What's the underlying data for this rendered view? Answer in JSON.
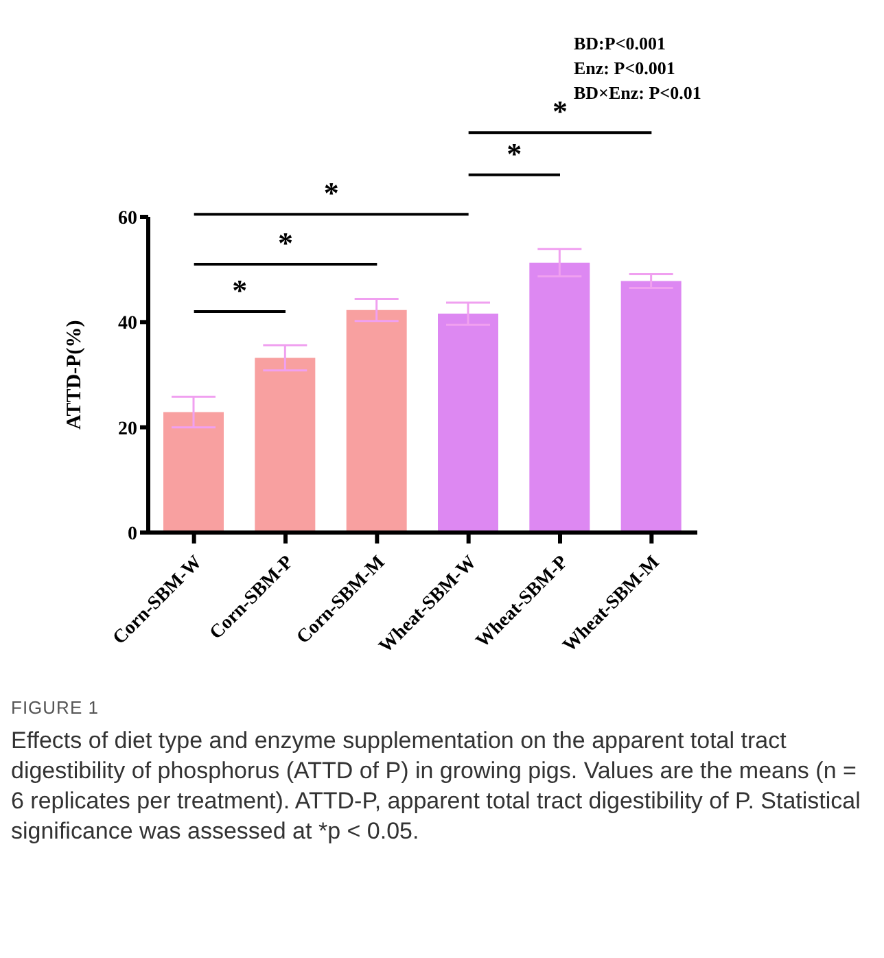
{
  "chart_data": {
    "type": "bar",
    "ylabel": "ATTD-P(%)",
    "categories": [
      "Corn-SBM-W",
      "Corn-SBM-P",
      "Corn-SBM-M",
      "Wheat-SBM-W",
      "Wheat-SBM-P",
      "Wheat-SBM-M"
    ],
    "values": [
      22.9,
      33.2,
      42.3,
      41.6,
      51.3,
      47.8
    ],
    "errors": [
      2.9,
      2.4,
      2.1,
      2.1,
      2.6,
      1.3
    ],
    "colors": [
      "#f8a0a0",
      "#f8a0a0",
      "#f8a0a0",
      "#dd88f2",
      "#dd88f2",
      "#dd88f2"
    ],
    "ylim": [
      0,
      60
    ],
    "yticks": [
      0,
      20,
      40,
      60
    ],
    "annotations": [
      "*",
      "*",
      "*",
      "*",
      "*",
      "BD:P<0.001",
      "Enz: P<0.001",
      "BD×Enz: P<0.01",
      "FIGURE 1",
      "Effects of diet type and enzyme supplementation on the apparent total tract digestibility of phosphorus (ATTD of P) in growing pigs. Values are the means (n = 6 replicates per treatment). ATTD-P, apparent total tract digestibility of P. Statistical significance was assessed at *p < 0.05."
    ]
  }
}
